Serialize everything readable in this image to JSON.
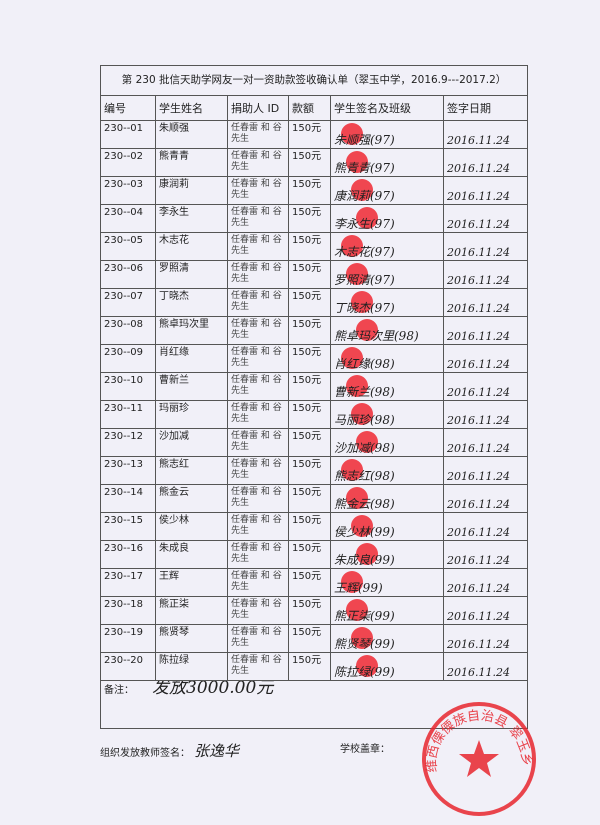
{
  "title": "第 230 批信天助学网友一对一资助款签收确认单（翠玉中学，2016.9---2017.2）",
  "headers": [
    "编号",
    "学生姓名",
    "捐助人 ID",
    "款额",
    "学生签名及班级",
    "签字日期"
  ],
  "rows": [
    {
      "id": "230--01",
      "name": "朱顺强",
      "donor": "任春雷 和 谷先生",
      "amount": "150元",
      "signature": "朱顺强(97)",
      "date": "2016.11.24"
    },
    {
      "id": "230--02",
      "name": "熊青青",
      "donor": "任春雷 和 谷先生",
      "amount": "150元",
      "signature": "熊青青(97)",
      "date": "2016.11.24"
    },
    {
      "id": "230--03",
      "name": "康润莉",
      "donor": "任春雷 和 谷先生",
      "amount": "150元",
      "signature": "康润莉(97)",
      "date": "2016.11.24"
    },
    {
      "id": "230--04",
      "name": "李永生",
      "donor": "任春雷 和 谷先生",
      "amount": "150元",
      "signature": "李永生(97)",
      "date": "2016.11.24"
    },
    {
      "id": "230--05",
      "name": "木志花",
      "donor": "任春雷 和 谷先生",
      "amount": "150元",
      "signature": "木志花(97)",
      "date": "2016.11.24"
    },
    {
      "id": "230--06",
      "name": "罗照清",
      "donor": "任春雷 和 谷先生",
      "amount": "150元",
      "signature": "罗照清(97)",
      "date": "2016.11.24"
    },
    {
      "id": "230--07",
      "name": "丁晓杰",
      "donor": "任春雷 和 谷先生",
      "amount": "150元",
      "signature": "丁晓杰(97)",
      "date": "2016.11.24"
    },
    {
      "id": "230--08",
      "name": "熊卓玛次里",
      "donor": "任春雷 和 谷先生",
      "amount": "150元",
      "signature": "熊卓玛次里(98)",
      "date": "2016.11.24"
    },
    {
      "id": "230--09",
      "name": "肖红缘",
      "donor": "任春雷 和 谷先生",
      "amount": "150元",
      "signature": "肖红缘(98)",
      "date": "2016.11.24"
    },
    {
      "id": "230--10",
      "name": "曹新兰",
      "donor": "任春雷 和 谷先生",
      "amount": "150元",
      "signature": "曹新兰(98)",
      "date": "2016.11.24"
    },
    {
      "id": "230--11",
      "name": "玛丽珍",
      "donor": "任春雷 和 谷先生",
      "amount": "150元",
      "signature": "马丽珍(98)",
      "date": "2016.11.24"
    },
    {
      "id": "230--12",
      "name": "沙加减",
      "donor": "任春雷 和 谷先生",
      "amount": "150元",
      "signature": "沙加减(98)",
      "date": "2016.11.24"
    },
    {
      "id": "230--13",
      "name": "熊志红",
      "donor": "任春雷 和 谷先生",
      "amount": "150元",
      "signature": "熊志红(98)",
      "date": "2016.11.24"
    },
    {
      "id": "230--14",
      "name": "熊金云",
      "donor": "任春雷 和 谷先生",
      "amount": "150元",
      "signature": "熊金云(98)",
      "date": "2016.11.24"
    },
    {
      "id": "230--15",
      "name": "侯少林",
      "donor": "任春雷 和 谷先生",
      "amount": "150元",
      "signature": "侯少林(99)",
      "date": "2016.11.24"
    },
    {
      "id": "230--16",
      "name": "朱成良",
      "donor": "任春雷 和 谷先生",
      "amount": "150元",
      "signature": "朱成良(99)",
      "date": "2016.11.24"
    },
    {
      "id": "230--17",
      "name": "王辉",
      "donor": "任春雷 和 谷先生",
      "amount": "150元",
      "signature": "王辉(99)",
      "date": "2016.11.24"
    },
    {
      "id": "230--18",
      "name": "熊正柒",
      "donor": "任春雷 和 谷先生",
      "amount": "150元",
      "signature": "熊正柒(99)",
      "date": "2016.11.24"
    },
    {
      "id": "230--19",
      "name": "熊贤琴",
      "donor": "任春雷 和 谷先生",
      "amount": "150元",
      "signature": "熊贤琴(99)",
      "date": "2016.11.24"
    },
    {
      "id": "230--20",
      "name": "陈拉绿",
      "donor": "任春雷 和 谷先生",
      "amount": "150元",
      "signature": "陈拉绿(99)",
      "date": "2016.11.24"
    }
  ],
  "remark": {
    "label": "备注：",
    "text": "发放3000.00元"
  },
  "teacher": {
    "label": "组织发放教师签名：",
    "signature": "张逸华"
  },
  "seal": {
    "label": "学校盖章：",
    "stamp_text": "维西傈僳族自治县 翠玉乡中学"
  },
  "colors": {
    "fingerprint": "#f02832",
    "stamp": "#e8262e"
  }
}
